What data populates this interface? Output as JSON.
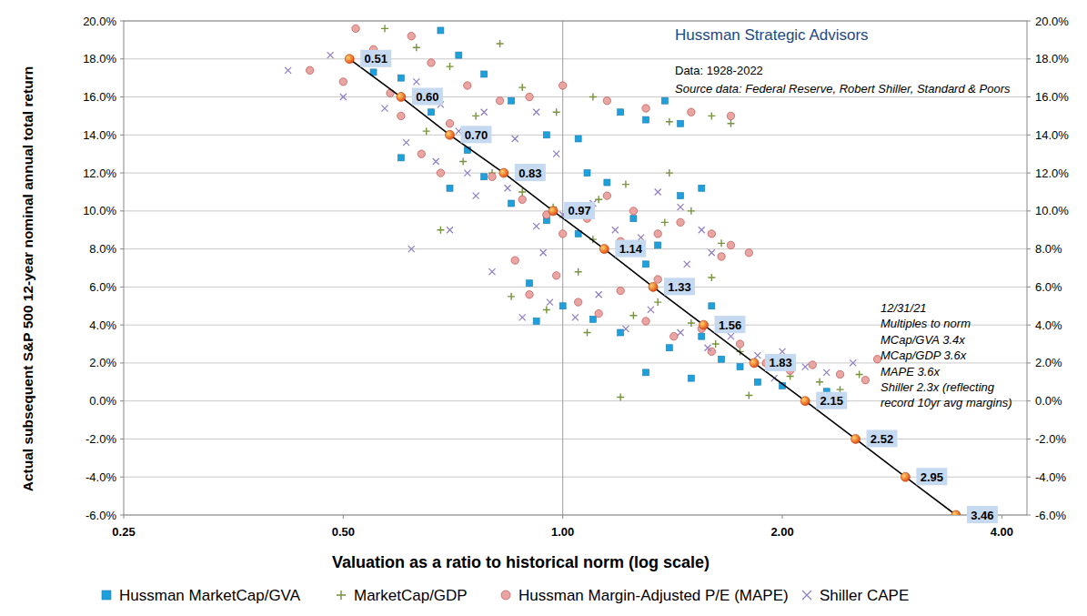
{
  "chart_data": {
    "type": "scatter",
    "title": "Hussman Strategic Advisors",
    "subtitle": "Data: 1928-2022",
    "source": "Source data: Federal Reserve, Robert Shiller, Standard & Poors",
    "annotation": [
      "12/31/21",
      "Multiples to norm",
      "MCap/GVA 3.4x",
      "MCap/GDP 3.6x",
      "MAPE 3.6x",
      "Shiller 2.3x (reflecting",
      "record 10yr avg margins)"
    ],
    "x_label": "Valuation as a ratio to historical norm (log scale)",
    "y_label": "Actual subsequent S&P 500 12-year nominal annual total return",
    "log": "x",
    "grid": true,
    "legend": "bottom",
    "x_reference": 1,
    "xlim": [
      0.25,
      4.33
    ],
    "xticks": [
      0.25,
      {
        "value": 0.5,
        "label": "0.50"
      },
      {
        "value": 1,
        "label": "1.00"
      },
      {
        "value": 2,
        "label": "2.00"
      },
      {
        "value": 4,
        "label": "4.00"
      }
    ],
    "ylim": [
      -6,
      20
    ],
    "yticks": [
      {
        "value": -6,
        "label": "-6.0%"
      },
      {
        "value": -4,
        "label": "-4.0%"
      },
      {
        "value": -2,
        "label": "-2.0%"
      },
      {
        "value": 0,
        "label": "0.0%"
      },
      {
        "value": 2,
        "label": "2.0%"
      },
      {
        "value": 4,
        "label": "4.0%"
      },
      {
        "value": 6,
        "label": "6.0%"
      },
      {
        "value": 8,
        "label": "8.0%"
      },
      {
        "value": 10,
        "label": "10.0%"
      },
      {
        "value": 12,
        "label": "12.0%"
      },
      {
        "value": 14,
        "label": "14.0%"
      },
      {
        "value": 16,
        "label": "16.0%"
      },
      {
        "value": 18,
        "label": "18.0%"
      },
      {
        "value": 20,
        "label": "20.0%"
      }
    ],
    "series": [
      {
        "name": "Hussman MarketCap/GVA",
        "color": "#1ea0dc",
        "marker": "square",
        "x": [
          0.55,
          0.6,
          0.68,
          0.72,
          0.78,
          0.85,
          0.66,
          0.74,
          0.95,
          1.05,
          1.2,
          1.3,
          1.45,
          1.38,
          0.7,
          0.78,
          0.85,
          0.95,
          1.05,
          1.15,
          1.08,
          1.25,
          1.35,
          1.45,
          1.55,
          1.3,
          0.9,
          1.0,
          1.1,
          1.2,
          1.4,
          1.55,
          1.65,
          1.75,
          1.5,
          1.3,
          1.85,
          2.0,
          2.3,
          1.6,
          0.6,
          0.92
        ],
        "values": [
          17.3,
          17.0,
          19.5,
          18.2,
          17.2,
          15.8,
          15.2,
          13.2,
          14.0,
          13.8,
          15.2,
          14.8,
          14.6,
          15.8,
          11.2,
          11.8,
          10.4,
          9.5,
          8.8,
          11.5,
          12.0,
          9.6,
          8.2,
          10.8,
          11.2,
          7.2,
          6.2,
          5.0,
          4.3,
          3.6,
          2.8,
          3.4,
          2.2,
          1.8,
          1.2,
          1.5,
          1.0,
          0.8,
          0.5,
          5.0,
          12.8,
          4.2
        ]
      },
      {
        "name": "MarketCap/GDP",
        "color": "#77933c",
        "marker": "plus",
        "x": [
          0.57,
          0.63,
          0.7,
          0.82,
          0.88,
          0.76,
          0.65,
          0.73,
          0.98,
          1.1,
          1.4,
          1.6,
          1.7,
          0.8,
          0.88,
          0.97,
          1.12,
          1.22,
          1.4,
          1.1,
          1.25,
          1.38,
          1.5,
          1.65,
          0.85,
          0.95,
          1.08,
          1.25,
          1.35,
          1.5,
          1.62,
          1.75,
          1.9,
          2.05,
          2.25,
          2.55,
          2.4,
          1.8,
          1.2,
          1.6,
          0.68,
          1.05
        ],
        "values": [
          19.6,
          18.6,
          17.6,
          18.8,
          16.5,
          15.0,
          14.2,
          12.6,
          15.2,
          16.0,
          14.7,
          15.0,
          14.6,
          12.0,
          11.0,
          10.2,
          10.6,
          11.4,
          12.0,
          8.5,
          7.8,
          9.4,
          10.0,
          8.3,
          5.5,
          4.8,
          3.6,
          4.5,
          5.2,
          4.1,
          3.0,
          2.6,
          1.9,
          1.3,
          1.0,
          1.4,
          0.6,
          0.3,
          0.2,
          6.5,
          9.0,
          6.8
        ]
      },
      {
        "name": "Hussman Margin-Adjusted P/E (MAPE)",
        "color": "#e8a5a2",
        "marker": "circle",
        "x": [
          0.52,
          0.55,
          0.62,
          0.45,
          0.5,
          0.58,
          0.66,
          0.74,
          0.82,
          0.6,
          0.7,
          0.78,
          0.9,
          1.0,
          1.15,
          1.3,
          1.5,
          1.7,
          0.64,
          0.68,
          0.8,
          0.88,
          0.95,
          1.0,
          1.08,
          1.15,
          1.25,
          1.2,
          1.35,
          1.45,
          1.6,
          1.7,
          1.8,
          1.65,
          0.86,
          0.9,
          0.98,
          1.05,
          1.12,
          1.2,
          1.3,
          1.42,
          1.55,
          1.6,
          1.75,
          1.9,
          2.05,
          2.2,
          2.4,
          2.6,
          2.7,
          1.35
        ],
        "values": [
          19.6,
          18.5,
          19.2,
          17.4,
          16.8,
          16.2,
          17.8,
          16.6,
          15.8,
          15.0,
          14.6,
          13.8,
          16.0,
          16.6,
          15.8,
          15.4,
          15.2,
          15.0,
          13.0,
          12.0,
          11.8,
          10.6,
          9.8,
          8.8,
          9.6,
          10.8,
          10.0,
          8.4,
          8.8,
          9.4,
          8.8,
          8.2,
          7.8,
          7.6,
          7.4,
          5.6,
          6.6,
          5.2,
          4.6,
          5.8,
          4.2,
          3.4,
          3.8,
          2.6,
          3.0,
          2.0,
          1.6,
          1.9,
          1.4,
          1.1,
          2.2,
          6.4
        ]
      },
      {
        "name": "Shiller CAPE",
        "color": "#8e7cc3",
        "marker": "x",
        "x": [
          0.42,
          0.48,
          0.54,
          0.5,
          0.57,
          0.63,
          0.68,
          0.61,
          0.72,
          0.78,
          0.86,
          0.92,
          0.98,
          0.67,
          0.74,
          0.62,
          0.7,
          0.76,
          0.84,
          0.92,
          1.0,
          1.1,
          1.18,
          1.28,
          1.35,
          1.45,
          1.55,
          1.6,
          1.48,
          0.8,
          0.88,
          0.96,
          1.04,
          1.12,
          1.22,
          1.32,
          1.45,
          1.58,
          1.7,
          1.85,
          2.0,
          2.15,
          2.3,
          2.5,
          1.95,
          0.94
        ],
        "values": [
          17.4,
          18.2,
          17.8,
          16.0,
          15.4,
          16.8,
          15.6,
          13.6,
          14.2,
          15.2,
          13.8,
          15.2,
          13.0,
          12.6,
          12.0,
          8.0,
          9.0,
          10.8,
          11.2,
          9.2,
          9.8,
          10.4,
          9.0,
          8.6,
          11.0,
          10.2,
          9.0,
          7.8,
          7.2,
          6.8,
          4.4,
          5.2,
          4.4,
          5.6,
          3.8,
          4.8,
          3.6,
          2.8,
          3.4,
          2.4,
          2.6,
          1.8,
          1.5,
          2.0,
          1.2,
          7.8
        ]
      }
    ],
    "benchmark": {
      "type": "line",
      "color": "#000000",
      "marker": "circle",
      "data_labels": true,
      "x": [
        0.51,
        0.6,
        0.7,
        0.83,
        0.97,
        1.14,
        1.33,
        1.56,
        1.83,
        2.15,
        2.52,
        2.95,
        3.46
      ],
      "x_labels": [
        "0.51",
        "0.60",
        "0.70",
        "0.83",
        "0.97",
        "1.14",
        "1.33",
        "1.56",
        "1.83",
        "2.15",
        "2.52",
        "2.95",
        "3.46"
      ],
      "values": [
        18,
        16,
        14,
        12,
        10,
        8,
        6,
        4,
        2,
        0,
        -2,
        -4,
        -6
      ]
    }
  }
}
